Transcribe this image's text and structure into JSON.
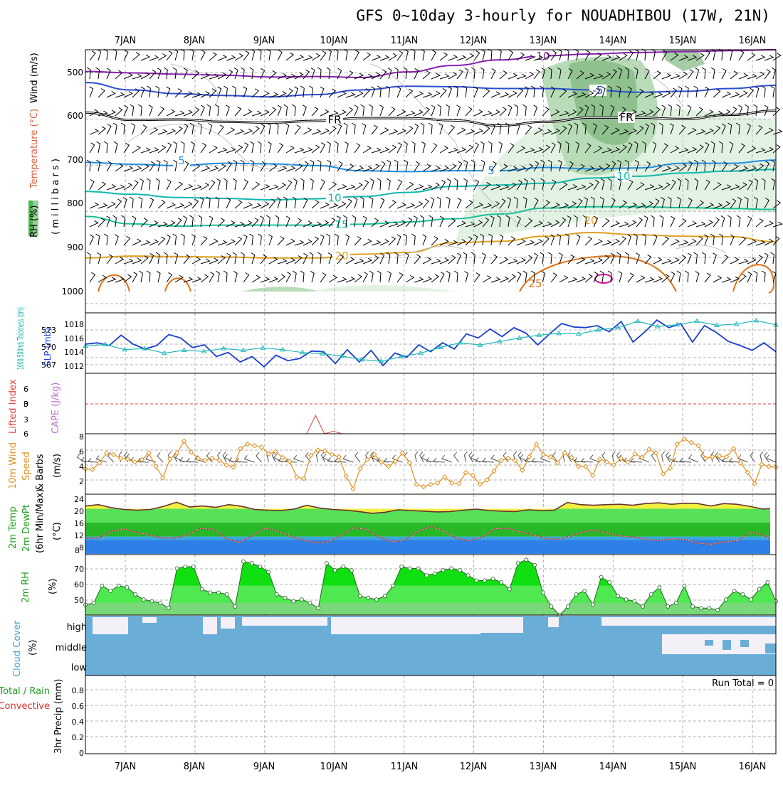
{
  "title": "GFS 0~10day 3-hourly for NOUADHIBOU (17W, 21N)",
  "date_labels": [
    "7JAN",
    "8JAN",
    "9JAN",
    "10JAN",
    "11JAN",
    "12JAN",
    "13JAN",
    "14JAN",
    "15JAN",
    "16JAN"
  ],
  "run_total": "Run Total = 0",
  "colors": {
    "temp_purple": "#8a1fb0",
    "temp_blue": "#2a4fd0",
    "temp_black": "#000000",
    "temp_lightblue": "#1e8fe0",
    "temp_teal": "#10b8b0",
    "temp_cyan": "#18c098",
    "temp_orange": "#e0a020",
    "temp_darkorange": "#e07010",
    "temp_magenta": "#d0109a",
    "rh_green_light": "#e2f2e2",
    "rh_green_mid": "#b8dcb8",
    "rh_green_dark": "#80b880",
    "slp_line": "#1a3fd0",
    "thickness_line": "#20b8b8",
    "lifted_index": "#e04040",
    "wind_line": "#e09020",
    "temp2m_yellow": "#f0f040",
    "dewpt_blue": "#2e80e8",
    "rh2m_green": "#1ed81e",
    "cloud_blue": "#6aaed8",
    "cloud_white": "#f4f0f8"
  },
  "panels": {
    "upper_air": {
      "ylabel_wind": "Wind (m/s)",
      "ylabel_temp": "Temperature (°C)",
      "ylabel_rh": "RH (%)",
      "ylabel_pressure": "( m i l l i b a r s )",
      "yticks": [
        "500",
        "600",
        "700",
        "800",
        "900",
        "1000"
      ]
    },
    "pressure": {
      "ylabel_thickness": "1000-500mb Thickness (dm)",
      "ylabel_slp": "SLP (mb)",
      "yticks_left": [
        "573",
        "570",
        "567"
      ],
      "yticks_right": [
        "1018",
        "1016",
        "1014",
        "1012"
      ]
    },
    "stability": {
      "ylabel_li": "Lifted Index",
      "ylabel_cape": "CAPE (J/kg)",
      "yticks": [
        "6",
        "3",
        "0",
        "3",
        "6"
      ]
    },
    "wind10m": {
      "ylabel": "10m Wind",
      "ylabel2": "Speed",
      "ylabel3": "& Barbs",
      "units": "(m/s)",
      "yticks": [
        "8",
        "6",
        "4",
        "2"
      ]
    },
    "temp2m": {
      "ylabel1": "2m Temp",
      "ylabel2": "2m DewPt",
      "ylabel3": "(6hr Min/Max)",
      "units": "(°C)",
      "yticks": [
        "24",
        "20",
        "16",
        "12",
        "8",
        "8"
      ]
    },
    "rh2m": {
      "ylabel": "2m RH",
      "units": "(%)",
      "yticks": [
        "70",
        "60",
        "50"
      ]
    },
    "cloud": {
      "ylabel": "Cloud Cover",
      "units": "(%)",
      "levels": [
        "high",
        "middle",
        "low"
      ]
    },
    "precip": {
      "ylabel1": "3hr Precip (mm)",
      "ylabel2": "Total / Rain",
      "ylabel3": "Convective",
      "yticks": [
        "0.8",
        "0.6",
        "0.4",
        "0.2",
        "0"
      ]
    }
  },
  "chart_data": [
    {
      "type": "line",
      "name": "upper-air temperature isotherms",
      "x_range_days": [
        0,
        9.75
      ],
      "ylim_mb": [
        450,
        1020
      ],
      "isotherms": [
        {
          "label": "-10",
          "y": [
            497,
            500,
            503,
            505,
            509,
            508,
            510,
            498,
            484,
            472,
            463,
            459,
            456,
            454,
            452,
            450
          ]
        },
        {
          "label": "-5",
          "y": [
            521,
            537,
            545,
            549,
            552,
            547,
            537,
            529,
            530,
            534,
            534,
            537,
            542,
            540,
            534,
            527
          ]
        },
        {
          "label": "FR",
          "y": [
            586,
            602,
            601,
            606,
            608,
            604,
            598,
            598,
            603,
            614,
            606,
            597,
            597,
            600,
            591,
            582
          ]
        },
        {
          "label": "5",
          "y": [
            694,
            698,
            701,
            696,
            697,
            701,
            712,
            714,
            712,
            712,
            705,
            708,
            706,
            696,
            696,
            689
          ]
        },
        {
          "label": "10",
          "y": [
            757,
            763,
            770,
            772,
            775,
            773,
            768,
            759,
            746,
            743,
            739,
            728,
            724,
            717,
            713,
            709
          ]
        },
        {
          "label": "15",
          "y": [
            811,
            827,
            832,
            830,
            830,
            830,
            828,
            823,
            816,
            806,
            793,
            790,
            790,
            792,
            794,
            796
          ]
        },
        {
          "label": "20",
          "y": [
            901,
            897,
            898,
            899,
            901,
            901,
            893,
            889,
            868,
            865,
            854,
            846,
            851,
            854,
            855,
            866
          ]
        }
      ]
    },
    {
      "type": "line",
      "name": "SLP and 1000-500mb thickness",
      "series": [
        {
          "name": "SLP (mb)",
          "values": [
            1015.0,
            1015.2,
            1014.8,
            1016.3,
            1015.0,
            1014.3,
            1014.8,
            1016.4,
            1015.9,
            1014.5,
            1014.9,
            1013.2,
            1013.8,
            1012.4,
            1013.2,
            1011.7,
            1013.4,
            1012.6,
            1012.9,
            1014.0,
            1013.9,
            1012.2,
            1014.2,
            1012.4,
            1014.1,
            1011.9,
            1013.7,
            1013.1,
            1014.9,
            1013.9,
            1015.2,
            1014.3,
            1016.5,
            1015.9,
            1017.2,
            1016.1,
            1017.4,
            1016.6,
            1014.9,
            1016.5,
            1018.0,
            1017.5,
            1017.4,
            1017.7,
            1016.8,
            1018.3,
            1015.3,
            1016.8,
            1018.5,
            1017.4,
            1018.0,
            1015.3,
            1017.7,
            1016.7,
            1015.4,
            1014.8,
            1014.1,
            1015.2,
            1013.9
          ]
        },
        {
          "name": "1000-500mb Thickness (dm)",
          "values": [
            570.2,
            570.5,
            569.6,
            569.8,
            569.0,
            569.5,
            569.3,
            569.8,
            569.5,
            569.9,
            569.6,
            569.1,
            568.9,
            568.5,
            567.9,
            567.6,
            568.4,
            569.0,
            570.0,
            570.8,
            570.4,
            571.0,
            571.6,
            572.1,
            572.4,
            572.3,
            573.0,
            573.4,
            574.5,
            573.6,
            573.9,
            574.5,
            573.8,
            574.0,
            574.6,
            573.9
          ]
        }
      ]
    },
    {
      "type": "line",
      "name": "Lifted Index",
      "ylim": [
        6,
        -6
      ],
      "values": [
        6,
        6,
        6,
        6,
        6,
        6,
        6,
        6,
        6,
        6,
        6,
        6,
        6,
        6,
        6,
        6,
        6,
        6,
        6,
        6,
        6,
        6,
        6,
        6,
        6,
        6,
        2.3,
        6,
        5.5,
        6,
        6,
        6,
        6,
        6,
        6,
        6,
        6,
        6,
        6,
        6,
        6,
        6,
        6,
        6,
        6,
        6,
        6,
        6,
        6,
        6,
        6,
        6,
        6,
        6,
        6,
        6,
        6,
        6,
        6,
        6,
        6,
        6,
        6,
        6,
        6,
        6,
        6,
        6,
        6,
        6,
        6,
        6,
        6,
        6,
        6,
        6,
        6,
        6,
        6
      ]
    },
    {
      "type": "line",
      "name": "10m wind speed",
      "ylim": [
        0,
        8
      ],
      "values": [
        3.5,
        3.4,
        4.3,
        5.6,
        5.4,
        4.9,
        4.8,
        4.4,
        4.7,
        5.6,
        3.8,
        2.3,
        4.8,
        5.6,
        7.2,
        5.7,
        4.9,
        4.6,
        4.9,
        4.6,
        4.0,
        3.7,
        6.2,
        6.8,
        6.6,
        6.4,
        5.5,
        5.8,
        5.0,
        4.5,
        2.4,
        2.2,
        5.3,
        6.0,
        5.9,
        5.4,
        5.1,
        2.5,
        0.8,
        3.5,
        4.7,
        5.4,
        4.4,
        3.8,
        4.5,
        5.6,
        4.3,
        1.4,
        1.1,
        1.4,
        1.6,
        2.4,
        1.6,
        1.5,
        3.0,
        2.6,
        1.4,
        2.0,
        3.2,
        4.6,
        4.9,
        4.6,
        3.3,
        5.1,
        6.8,
        5.4,
        5.1,
        4.3,
        5.6,
        5.0,
        3.8,
        3.8,
        2.6,
        4.8,
        4.4,
        4.0,
        4.9,
        4.4,
        5.5,
        5.0,
        6.1,
        5.6,
        2.8,
        3.6,
        6.8,
        7.5,
        7.0,
        6.6,
        4.9,
        5.1,
        5.2,
        5.1,
        6.2,
        4.3,
        3.0,
        1.5,
        4.1,
        3.8,
        3.7
      ]
    },
    {
      "type": "area",
      "name": "2m temperature and dewpoint",
      "ylim": [
        7,
        24
      ],
      "series": [
        {
          "name": "2m Temp",
          "values": [
            20.8,
            21.2,
            20.3,
            19.8,
            19.6,
            19.8,
            20.7,
            21.9,
            20.5,
            20.8,
            20.4,
            21.2,
            20.7,
            19.8,
            19.6,
            19.5,
            19.9,
            21.0,
            20.2,
            19.8,
            19.6,
            19.2,
            18.7,
            19.0,
            19.7,
            19.5,
            19.3,
            19.1,
            19.2,
            19.6,
            19.9,
            19.5,
            19.3,
            19.2,
            19.7,
            19.5,
            19.6,
            21.8,
            21.2,
            21.0,
            21.2,
            21.3,
            21.0,
            21.5,
            21.7,
            21.3,
            21.6,
            21.5,
            20.8,
            21.5,
            21.3,
            20.7,
            19.9,
            20.2
          ]
        },
        {
          "name": "2m DewPt",
          "values": [
            11.5,
            11.5,
            13.5,
            14.2,
            13.2,
            12.5,
            11.6,
            11.5,
            12.5,
            14.4,
            14.1,
            11.4,
            10.3,
            12.1,
            14.4,
            13.7,
            12.1,
            11.0,
            10.2,
            10.5,
            12.4,
            14.6,
            14.0,
            11.8,
            10.5,
            11.0,
            13.5,
            14.8,
            13.6,
            11.5,
            10.8,
            11.8,
            14.2,
            14.4,
            13.4,
            12.5,
            11.4,
            11.2,
            12.2,
            13.5,
            13.8,
            12.8,
            12.1,
            11.8,
            11.1,
            10.9,
            11.4,
            11.0,
            10.0,
            9.8,
            10.5,
            10.8,
            13.2,
            12.6,
            10.1
          ]
        }
      ]
    },
    {
      "type": "area",
      "name": "2m RH",
      "ylim": [
        43,
        78
      ],
      "values": [
        49,
        50,
        60,
        57,
        60,
        59,
        55,
        52,
        51,
        50,
        47,
        70,
        71,
        71,
        58,
        56,
        56,
        55,
        48,
        74,
        73,
        71,
        68,
        55,
        53,
        51,
        52,
        50,
        47,
        73,
        69,
        71,
        69,
        54,
        53,
        52,
        54,
        60,
        71,
        70,
        70,
        66,
        67,
        69,
        70,
        69,
        66,
        63,
        63,
        64,
        62,
        58,
        73,
        75,
        72,
        56,
        48,
        43,
        48,
        55,
        57,
        49,
        65,
        62,
        54,
        52,
        51,
        48,
        55,
        59,
        48,
        50,
        60,
        48,
        47,
        47,
        46,
        52,
        57,
        55,
        52,
        58,
        62,
        51
      ]
    },
    {
      "type": "heatmap",
      "name": "cloud cover",
      "levels": [
        "high",
        "middle",
        "low"
      ]
    },
    {
      "type": "bar",
      "name": "3hr precip",
      "ylim": [
        0,
        0.9
      ],
      "values": []
    }
  ]
}
